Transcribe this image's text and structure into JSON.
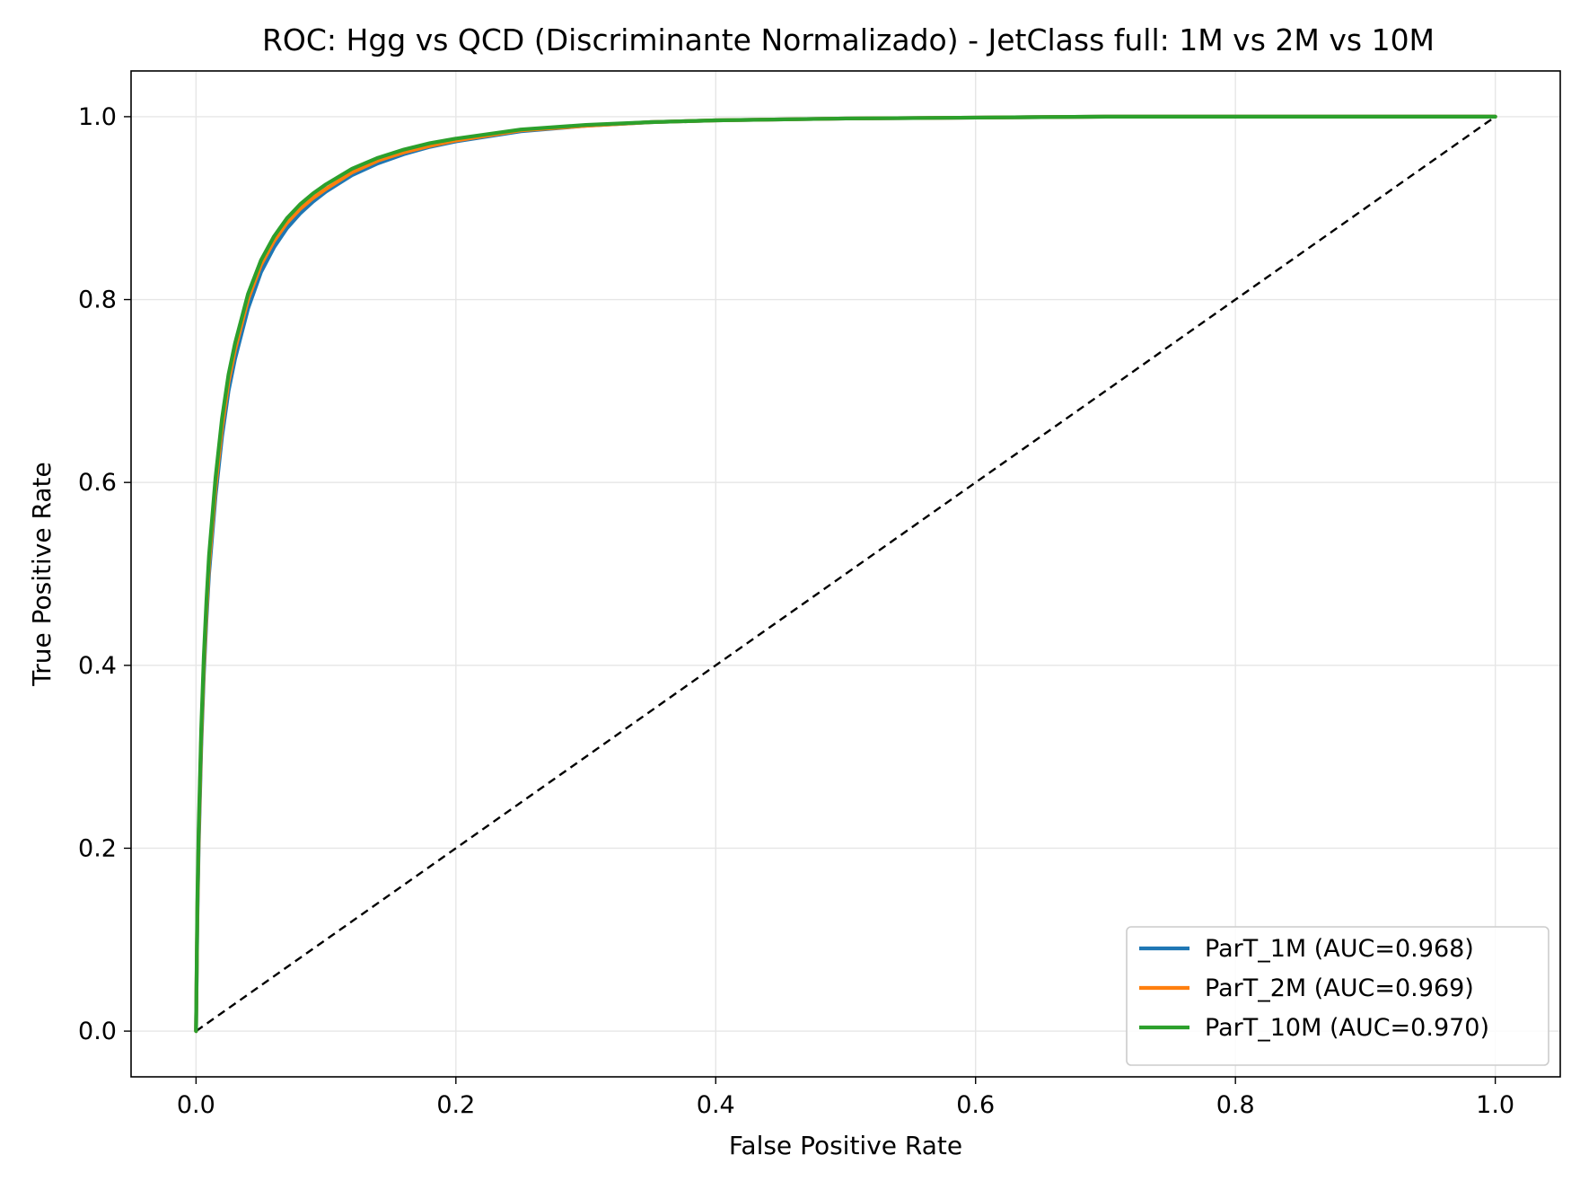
{
  "chart_data": {
    "type": "line",
    "title": "ROC: Hgg vs QCD (Discriminante Normalizado) - JetClass full: 1M vs 2M vs 10M",
    "xlabel": "False Positive Rate",
    "ylabel": "True Positive Rate",
    "xlim": [
      -0.05,
      1.05
    ],
    "ylim": [
      -0.05,
      1.05
    ],
    "xticks": [
      "0.0",
      "0.2",
      "0.4",
      "0.6",
      "0.8",
      "1.0"
    ],
    "yticks": [
      "0.0",
      "0.2",
      "0.4",
      "0.6",
      "0.8",
      "1.0"
    ],
    "grid": true,
    "legend_position": "lower-right",
    "series": [
      {
        "name": "ParT_1M (AUC=0.968)",
        "color": "#1f77b4",
        "x": [
          0.0,
          0.001,
          0.002,
          0.004,
          0.006,
          0.008,
          0.01,
          0.015,
          0.02,
          0.025,
          0.03,
          0.04,
          0.05,
          0.06,
          0.07,
          0.08,
          0.09,
          0.1,
          0.12,
          0.14,
          0.16,
          0.18,
          0.2,
          0.25,
          0.3,
          0.35,
          0.4,
          0.5,
          0.6,
          0.7,
          0.8,
          0.9,
          1.0
        ],
        "y": [
          0.0,
          0.12,
          0.2,
          0.31,
          0.39,
          0.45,
          0.5,
          0.585,
          0.65,
          0.7,
          0.735,
          0.79,
          0.83,
          0.857,
          0.878,
          0.894,
          0.907,
          0.918,
          0.936,
          0.949,
          0.959,
          0.967,
          0.973,
          0.984,
          0.99,
          0.994,
          0.996,
          0.998,
          0.999,
          1.0,
          1.0,
          1.0,
          1.0
        ]
      },
      {
        "name": "ParT_2M (AUC=0.969)",
        "color": "#ff7f0e",
        "x": [
          0.0,
          0.001,
          0.002,
          0.004,
          0.006,
          0.008,
          0.01,
          0.015,
          0.02,
          0.025,
          0.03,
          0.04,
          0.05,
          0.06,
          0.07,
          0.08,
          0.09,
          0.1,
          0.12,
          0.14,
          0.16,
          0.18,
          0.2,
          0.25,
          0.3,
          0.35,
          0.4,
          0.5,
          0.6,
          0.7,
          0.8,
          0.9,
          1.0
        ],
        "y": [
          0.0,
          0.13,
          0.21,
          0.32,
          0.4,
          0.46,
          0.51,
          0.595,
          0.66,
          0.71,
          0.745,
          0.8,
          0.838,
          0.864,
          0.884,
          0.899,
          0.911,
          0.921,
          0.939,
          0.952,
          0.961,
          0.968,
          0.974,
          0.985,
          0.99,
          0.994,
          0.996,
          0.998,
          0.999,
          1.0,
          1.0,
          1.0,
          1.0
        ]
      },
      {
        "name": "ParT_10M (AUC=0.970)",
        "color": "#2ca02c",
        "x": [
          0.0,
          0.001,
          0.002,
          0.004,
          0.006,
          0.008,
          0.01,
          0.015,
          0.02,
          0.025,
          0.03,
          0.04,
          0.05,
          0.06,
          0.07,
          0.08,
          0.09,
          0.1,
          0.12,
          0.14,
          0.16,
          0.18,
          0.2,
          0.25,
          0.3,
          0.35,
          0.4,
          0.5,
          0.6,
          0.7,
          0.8,
          0.9,
          1.0
        ],
        "y": [
          0.0,
          0.14,
          0.22,
          0.33,
          0.41,
          0.47,
          0.52,
          0.605,
          0.67,
          0.718,
          0.752,
          0.806,
          0.843,
          0.869,
          0.889,
          0.904,
          0.916,
          0.926,
          0.943,
          0.955,
          0.964,
          0.971,
          0.976,
          0.986,
          0.991,
          0.994,
          0.996,
          0.998,
          0.999,
          1.0,
          1.0,
          1.0,
          1.0
        ]
      },
      {
        "name": "",
        "color": "#000000",
        "dashed": true,
        "x": [
          0.0,
          1.0
        ],
        "y": [
          0.0,
          1.0
        ]
      }
    ]
  }
}
